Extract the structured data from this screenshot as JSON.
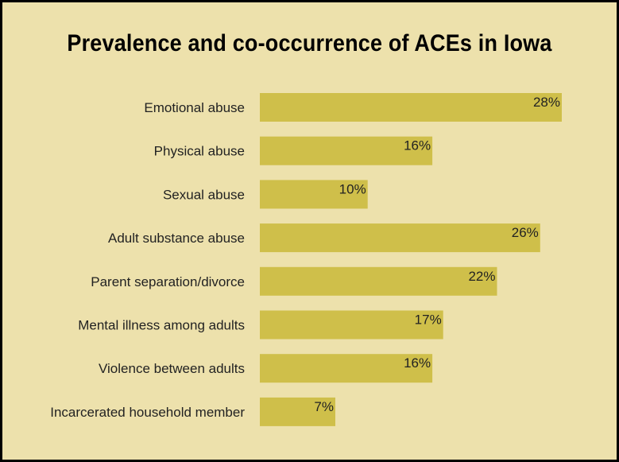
{
  "chart_data": {
    "type": "bar",
    "orientation": "horizontal",
    "title": "Prevalence and co-occurrence of ACEs in Iowa",
    "categories": [
      "Emotional abuse",
      "Physical abuse",
      "Sexual abuse",
      "Adult substance abuse",
      "Parent separation/divorce",
      "Mental illness among adults",
      "Violence between adults",
      "Incarcerated household member"
    ],
    "values": [
      28,
      16,
      10,
      26,
      22,
      17,
      16,
      7
    ],
    "value_labels": [
      "28%",
      "16%",
      "10%",
      "26%",
      "22%",
      "17%",
      "16%",
      "7%"
    ],
    "unit": "%",
    "xlabel": "",
    "ylabel": "",
    "grid": false,
    "legend": "none",
    "colors": {
      "background": "#ede1ac",
      "border": "#000000",
      "bar": "#cfbf4a",
      "text": "#222222"
    }
  }
}
